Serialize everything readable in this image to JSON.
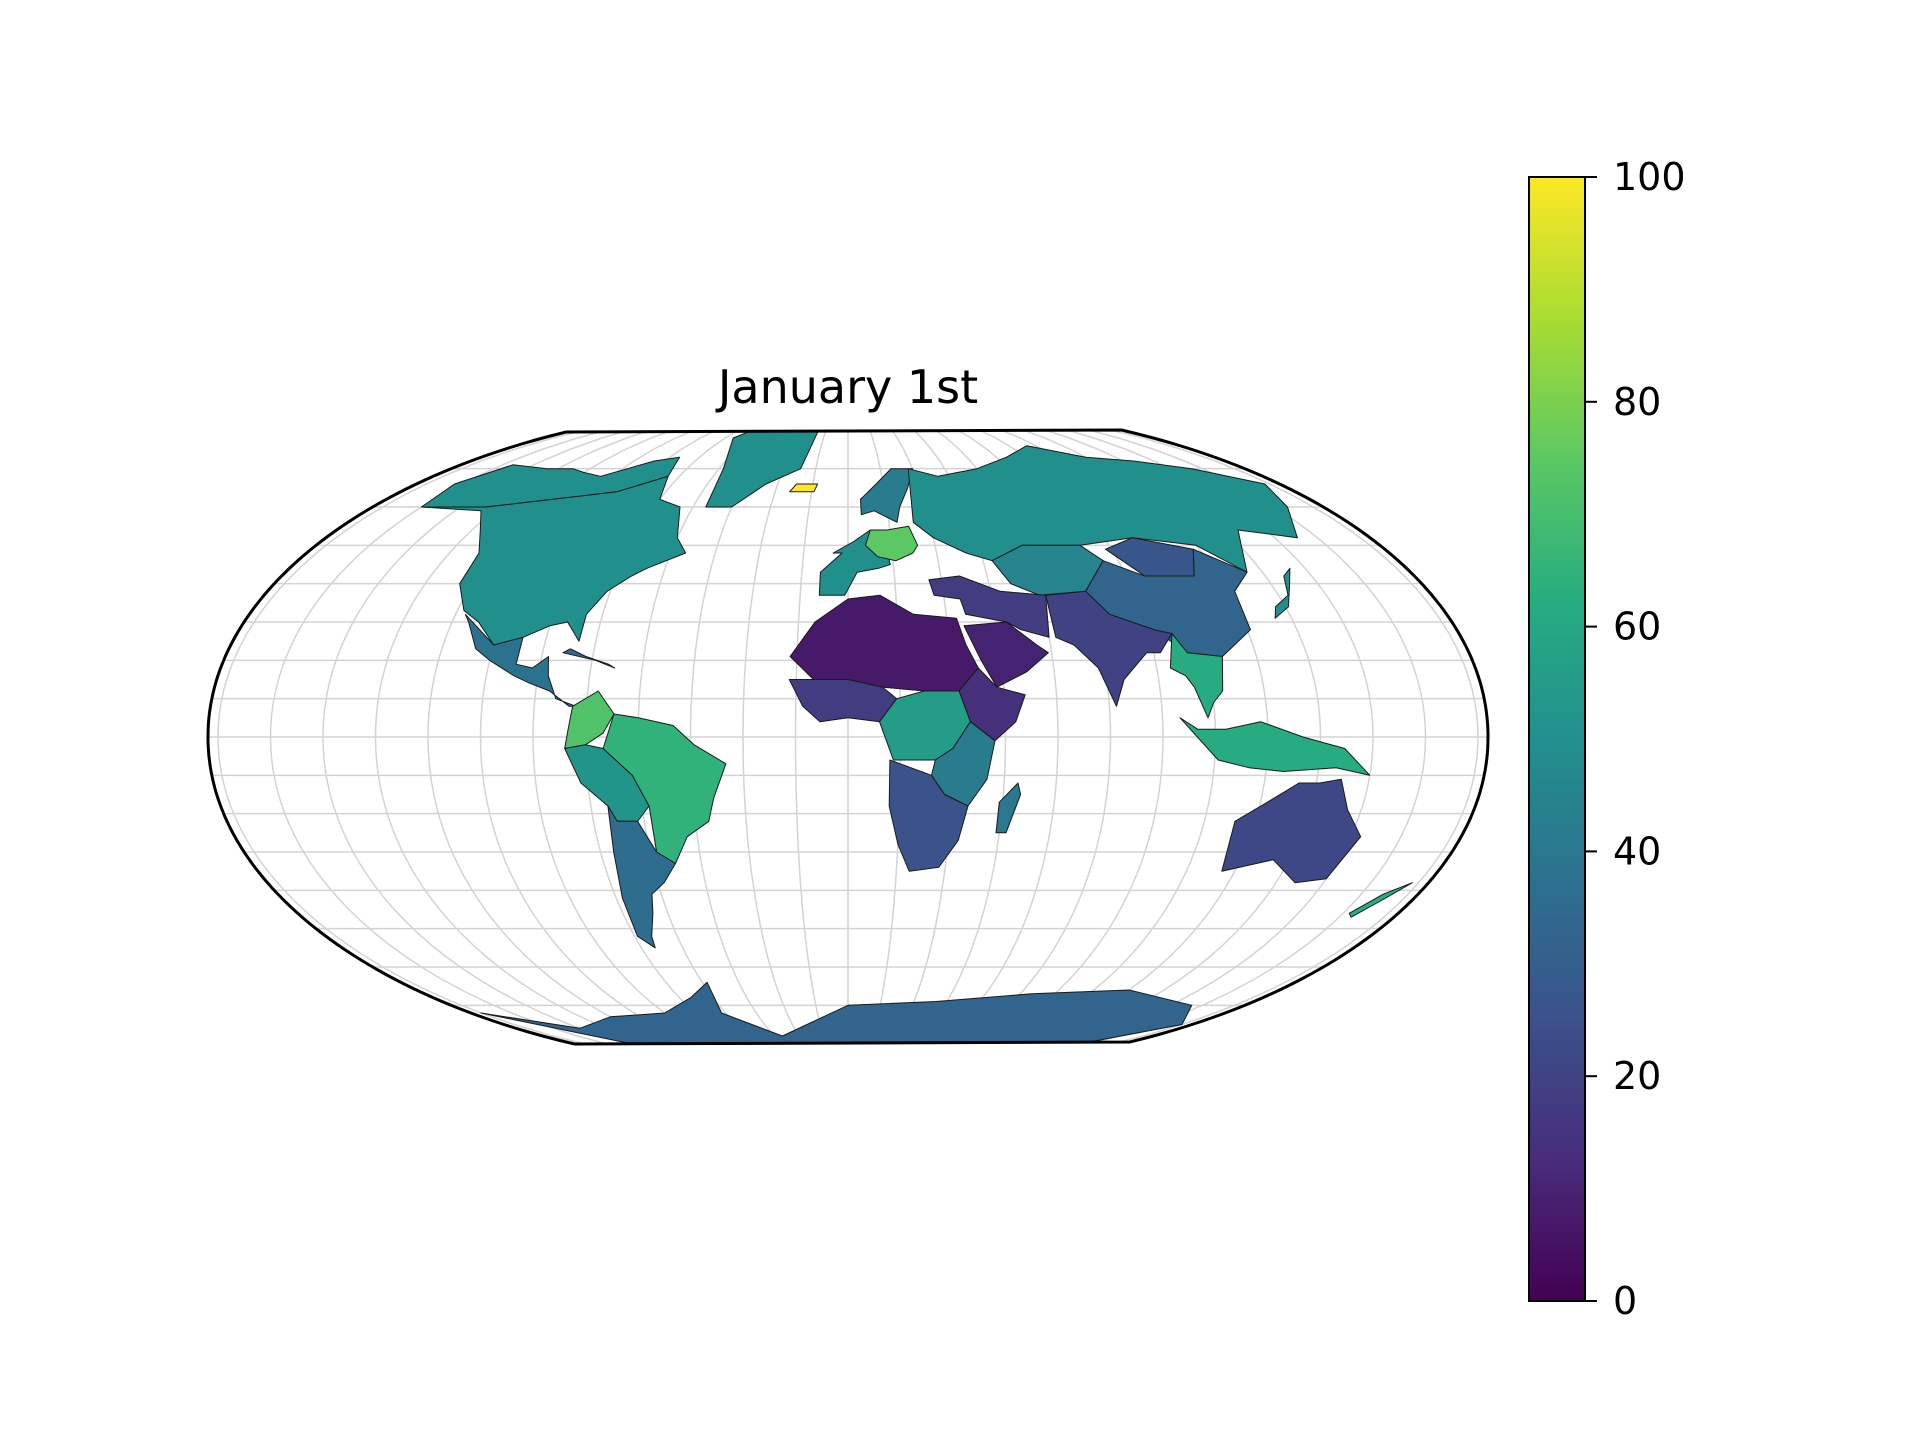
{
  "map": {
    "title": "January 1st",
    "projection": "Robinson-like world projection",
    "graticule": true,
    "colormap": "viridis",
    "region_values": {
      "north_america": 50,
      "greenland": 50,
      "alaska_arctic": 50,
      "mexico_central_america": 38,
      "caribbean": 35,
      "colombia_ecuador": 72,
      "brazil": 65,
      "peru_bolivia": 52,
      "argentina_chile": 36,
      "iceland": 100,
      "western_europe": 50,
      "central_europe": 75,
      "scandinavia": 42,
      "russia": 50,
      "central_asia": 45,
      "china": 33,
      "mongolia": 27,
      "india_south_asia": 20,
      "middle_east": 18,
      "arabian_peninsula": 10,
      "north_africa_sahel": 7,
      "west_africa": 18,
      "horn_of_africa": 14,
      "central_africa": 55,
      "east_africa": 42,
      "southern_africa": 26,
      "madagascar": 40,
      "southeast_asia": 62,
      "indonesia": 62,
      "australia": 22,
      "new_zealand": 62,
      "antarctica": 33,
      "japan": 50
    }
  },
  "colorbar": {
    "min": 0,
    "max": 100,
    "ticks": [
      "0",
      "20",
      "40",
      "60",
      "80",
      "100"
    ],
    "colors": [
      "#440154",
      "#472c7a",
      "#3b518b",
      "#2c718e",
      "#21908d",
      "#27ad81",
      "#5cc863",
      "#aadc32",
      "#fde725"
    ]
  }
}
